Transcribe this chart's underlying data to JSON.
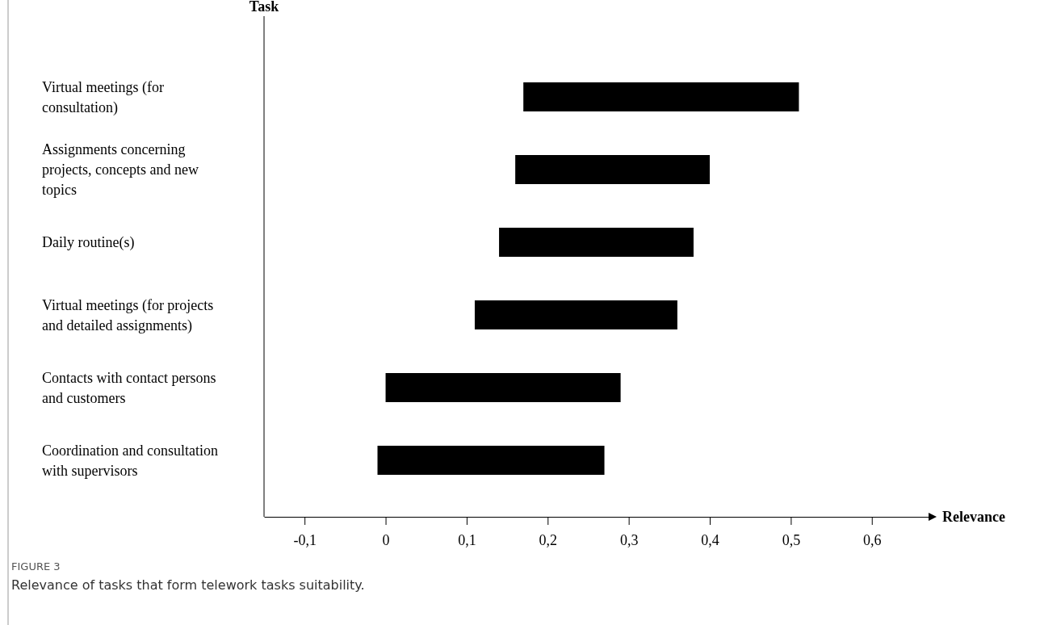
{
  "chart_data": {
    "type": "bar",
    "orientation": "horizontal",
    "ylabel": "Task",
    "xlabel": "Relevance",
    "categories": [
      "Virtual meetings (for consultation)",
      "Assignments concerning projects, concepts and new topics",
      "Daily routine(s)",
      "Virtual meetings (for projects and detailed assignments)",
      "Contacts with contact persons and customers",
      "Coordination and consultation with supervisors"
    ],
    "base": [
      0.17,
      0.16,
      0.14,
      0.11,
      0.0,
      -0.01
    ],
    "values": [
      0.34,
      0.24,
      0.24,
      0.25,
      0.29,
      0.28
    ],
    "color": "#000000",
    "xlim": [
      -0.15,
      0.67
    ],
    "xticks": [
      {
        "value": -0.1,
        "label": "-0,1"
      },
      {
        "value": 0,
        "label": "0"
      },
      {
        "value": 0.1,
        "label": "0,1"
      },
      {
        "value": 0.2,
        "label": "0,2"
      },
      {
        "value": 0.3,
        "label": "0,3"
      },
      {
        "value": 0.4,
        "label": "0,4"
      },
      {
        "value": 0.5,
        "label": "0,5"
      },
      {
        "value": 0.6,
        "label": "0,6"
      }
    ],
    "annotations": [
      "FIGURE 3",
      "Relevance of tasks that form telework tasks suitability."
    ]
  }
}
